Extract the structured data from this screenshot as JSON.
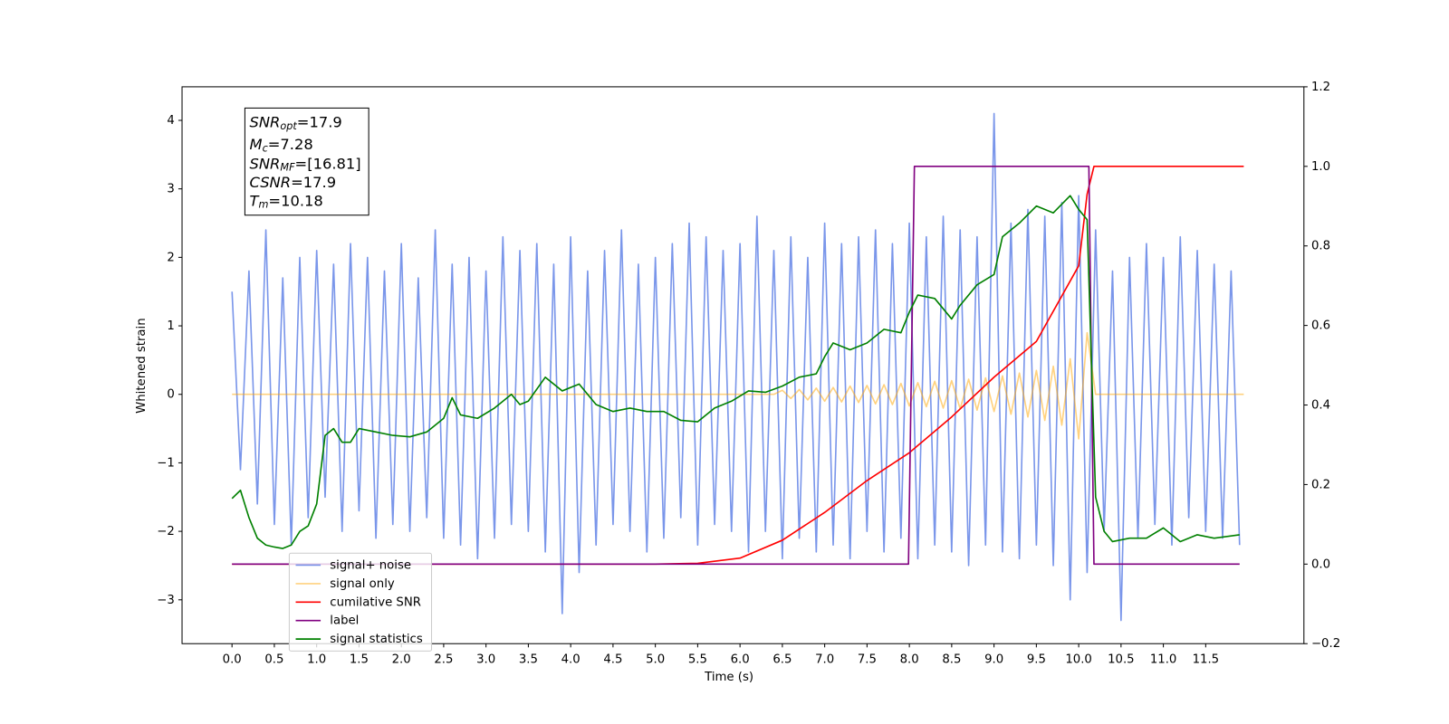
{
  "chart_data": {
    "type": "line",
    "xlabel": "Time (s)",
    "ylabel": "Whitened strain",
    "xlim": [
      -0.59,
      12.66
    ],
    "ylim": [
      -3.64,
      4.49
    ],
    "y2lim": [
      -0.2,
      1.2
    ],
    "xticks": [
      {
        "value": 0,
        "label": "0.0"
      },
      0.5,
      {
        "value": 1,
        "label": "1.0"
      },
      1.5,
      {
        "value": 2,
        "label": "2.0"
      },
      2.5,
      {
        "value": 3,
        "label": "3.0"
      },
      3.5,
      {
        "value": 4,
        "label": "4.0"
      },
      4.5,
      {
        "value": 5,
        "label": "5.0"
      },
      5.5,
      {
        "value": 6,
        "label": "6.0"
      },
      6.5,
      {
        "value": 7,
        "label": "7.0"
      },
      7.5,
      {
        "value": 8,
        "label": "8.0"
      },
      8.5,
      {
        "value": 9,
        "label": "9.0"
      },
      9.5,
      {
        "value": 10,
        "label": "10.0"
      },
      10.5,
      {
        "value": 11,
        "label": "11.0"
      },
      11.5
    ],
    "yticks": [
      {
        "value": -3,
        "label": "−3"
      },
      {
        "value": -2,
        "label": "−2"
      },
      {
        "value": -1,
        "label": "−1"
      },
      0,
      1,
      2,
      3,
      4
    ],
    "y2ticks": [
      {
        "value": -0.2,
        "label": "−0.2"
      },
      {
        "value": 0,
        "label": "0.0"
      },
      0.2,
      0.4,
      0.6,
      0.8,
      {
        "value": 1,
        "label": "1.0"
      },
      1.2
    ],
    "legend": "lower left",
    "annotation": [
      {
        "symbol": "SNR",
        "subscript": "opt",
        "text": "=17.9"
      },
      {
        "symbol": "M",
        "subscript": "c",
        "text": "=7.28"
      },
      {
        "symbol": "SNR",
        "subscript": "MF",
        "text": "=[16.81]"
      },
      {
        "symbol": "CSNR",
        "text": "=17.9"
      },
      {
        "symbol": "T",
        "subscript": "m",
        "text": "=10.18"
      }
    ],
    "series": [
      {
        "name": "signal+ noise",
        "color": "#4169e1",
        "alpha": 0.7,
        "axis": "y",
        "x": [
          0,
          0.1,
          0.2,
          0.3,
          0.4,
          0.5,
          0.6,
          0.7,
          0.8,
          0.9,
          1,
          1.1,
          1.2,
          1.3,
          1.4,
          1.5,
          1.6,
          1.7,
          1.8,
          1.9,
          2,
          2.1,
          2.2,
          2.3,
          2.4,
          2.5,
          2.6,
          2.7,
          2.8,
          2.9,
          3,
          3.1,
          3.2,
          3.3,
          3.4,
          3.5,
          3.6,
          3.7,
          3.8,
          3.9,
          4,
          4.1,
          4.2,
          4.3,
          4.4,
          4.5,
          4.6,
          4.7,
          4.8,
          4.9,
          5,
          5.1,
          5.2,
          5.3,
          5.4,
          5.5,
          5.6,
          5.7,
          5.8,
          5.9,
          6,
          6.1,
          6.2,
          6.3,
          6.4,
          6.5,
          6.6,
          6.7,
          6.8,
          6.9,
          7,
          7.1,
          7.2,
          7.3,
          7.4,
          7.5,
          7.6,
          7.7,
          7.8,
          7.9,
          8,
          8.1,
          8.2,
          8.3,
          8.4,
          8.5,
          8.6,
          8.7,
          8.8,
          8.9,
          9,
          9.1,
          9.2,
          9.3,
          9.4,
          9.5,
          9.6,
          9.7,
          9.8,
          9.9,
          10,
          10.1,
          10.2,
          10.3,
          10.4,
          10.5,
          10.6,
          10.7,
          10.8,
          10.9,
          11,
          11.1,
          11.2,
          11.3,
          11.4,
          11.5,
          11.6,
          11.7,
          11.8,
          11.9
        ],
        "values": [
          1.5,
          -1.1,
          1.8,
          -1.6,
          2.4,
          -1.9,
          1.7,
          -2.2,
          2.0,
          -1.8,
          2.1,
          -1.5,
          1.9,
          -2.0,
          2.2,
          -1.7,
          2.0,
          -2.1,
          1.8,
          -1.9,
          2.2,
          -2.0,
          1.7,
          -1.8,
          2.4,
          -2.1,
          1.9,
          -2.2,
          2.0,
          -2.4,
          1.8,
          -2.1,
          2.3,
          -1.9,
          2.1,
          -2.0,
          2.2,
          -2.3,
          1.9,
          -3.2,
          2.3,
          -2.6,
          1.8,
          -2.2,
          2.1,
          -1.9,
          2.4,
          -2.0,
          1.9,
          -2.3,
          2.0,
          -2.1,
          2.2,
          -1.8,
          2.5,
          -2.2,
          2.3,
          -1.9,
          2.1,
          -2.0,
          2.2,
          -2.3,
          2.6,
          -2.0,
          2.1,
          -2.4,
          2.3,
          -2.1,
          2.0,
          -2.3,
          2.5,
          -2.2,
          2.2,
          -2.4,
          2.3,
          -2.0,
          2.4,
          -2.3,
          2.2,
          -2.1,
          2.5,
          -2.4,
          2.3,
          -2.2,
          2.6,
          -2.3,
          2.4,
          -2.5,
          2.3,
          -2.2,
          4.1,
          -2.3,
          2.5,
          -2.4,
          2.7,
          -2.2,
          2.6,
          -2.5,
          2.8,
          -3.0,
          2.9,
          -2.6,
          2.4,
          -2.0,
          1.8,
          -3.3,
          2.0,
          -2.1,
          2.2,
          -1.9,
          2.0,
          -2.2,
          2.3,
          -1.8,
          2.1,
          -2.0,
          1.9,
          -2.1,
          1.8,
          -2.2
        ]
      },
      {
        "name": "signal only",
        "color": "#ffa500",
        "alpha": 0.5,
        "axis": "y",
        "x": [
          0,
          6.4,
          6.5,
          6.6,
          6.7,
          6.8,
          6.9,
          7,
          7.1,
          7.2,
          7.3,
          7.4,
          7.5,
          7.6,
          7.7,
          7.8,
          7.9,
          8,
          8.1,
          8.2,
          8.3,
          8.4,
          8.5,
          8.6,
          8.7,
          8.8,
          8.9,
          9,
          9.1,
          9.2,
          9.3,
          9.4,
          9.5,
          9.6,
          9.7,
          9.8,
          9.9,
          10,
          10.1,
          10.2,
          11.95
        ],
        "values": [
          0,
          0,
          0.06,
          -0.06,
          0.07,
          -0.08,
          0.09,
          -0.1,
          0.1,
          -0.11,
          0.12,
          -0.12,
          0.13,
          -0.14,
          0.14,
          -0.15,
          0.16,
          -0.17,
          0.17,
          -0.18,
          0.19,
          -0.2,
          0.2,
          -0.21,
          0.22,
          -0.23,
          0.24,
          -0.25,
          0.27,
          -0.29,
          0.31,
          -0.33,
          0.35,
          -0.38,
          0.41,
          -0.45,
          0.52,
          -0.65,
          0.9,
          0,
          0
        ]
      },
      {
        "name": "cumilative SNR",
        "color": "#ff0000",
        "alpha": 1,
        "axis": "y2",
        "x": [
          0,
          5,
          5.5,
          6,
          6.5,
          7,
          7.5,
          8,
          8.5,
          9,
          9.5,
          10,
          10.1,
          10.18,
          11.95
        ],
        "values": [
          0,
          0,
          0.002,
          0.015,
          0.06,
          0.13,
          0.21,
          0.28,
          0.37,
          0.47,
          0.56,
          0.75,
          0.93,
          1,
          1
        ]
      },
      {
        "name": "label",
        "color": "#800080",
        "alpha": 1,
        "axis": "y2",
        "x": [
          0,
          7.99,
          8.06,
          10.12,
          10.18,
          11.9
        ],
        "values": [
          0,
          0,
          1,
          1,
          0,
          0
        ]
      },
      {
        "name": "signal statistics",
        "color": "#008000",
        "alpha": 1,
        "axis": "y",
        "x": [
          0,
          0.1,
          0.2,
          0.3,
          0.4,
          0.5,
          0.6,
          0.7,
          0.8,
          0.9,
          1,
          1.1,
          1.2,
          1.3,
          1.4,
          1.5,
          1.7,
          1.9,
          2.1,
          2.3,
          2.5,
          2.6,
          2.7,
          2.9,
          3.1,
          3.3,
          3.4,
          3.5,
          3.7,
          3.9,
          4.1,
          4.3,
          4.5,
          4.7,
          4.9,
          5.1,
          5.3,
          5.5,
          5.7,
          5.9,
          6.1,
          6.3,
          6.5,
          6.7,
          6.9,
          7,
          7.1,
          7.3,
          7.5,
          7.7,
          7.9,
          8,
          8.1,
          8.3,
          8.5,
          8.6,
          8.8,
          9,
          9.1,
          9.3,
          9.5,
          9.7,
          9.9,
          10,
          10.1,
          10.15,
          10.2,
          10.3,
          10.4,
          10.6,
          10.8,
          11,
          11.2,
          11.4,
          11.6,
          11.9
        ],
        "values": [
          -1.52,
          -1.4,
          -1.8,
          -2.1,
          -2.2,
          -2.23,
          -2.25,
          -2.2,
          -2.0,
          -1.92,
          -1.6,
          -0.6,
          -0.5,
          -0.7,
          -0.7,
          -0.5,
          -0.55,
          -0.6,
          -0.62,
          -0.55,
          -0.35,
          -0.05,
          -0.3,
          -0.35,
          -0.2,
          0,
          -0.15,
          -0.1,
          0.25,
          0.05,
          0.15,
          -0.15,
          -0.25,
          -0.2,
          -0.25,
          -0.25,
          -0.38,
          -0.4,
          -0.2,
          -0.1,
          0.05,
          0.03,
          0.12,
          0.25,
          0.3,
          0.55,
          0.75,
          0.65,
          0.75,
          0.95,
          0.9,
          1.2,
          1.45,
          1.4,
          1.1,
          1.3,
          1.6,
          1.75,
          2.3,
          2.5,
          2.75,
          2.65,
          2.9,
          2.7,
          2.55,
          0.5,
          -1.5,
          -2.0,
          -2.15,
          -2.1,
          -2.1,
          -1.95,
          -2.15,
          -2.05,
          -2.1,
          -2.05
        ]
      }
    ]
  }
}
